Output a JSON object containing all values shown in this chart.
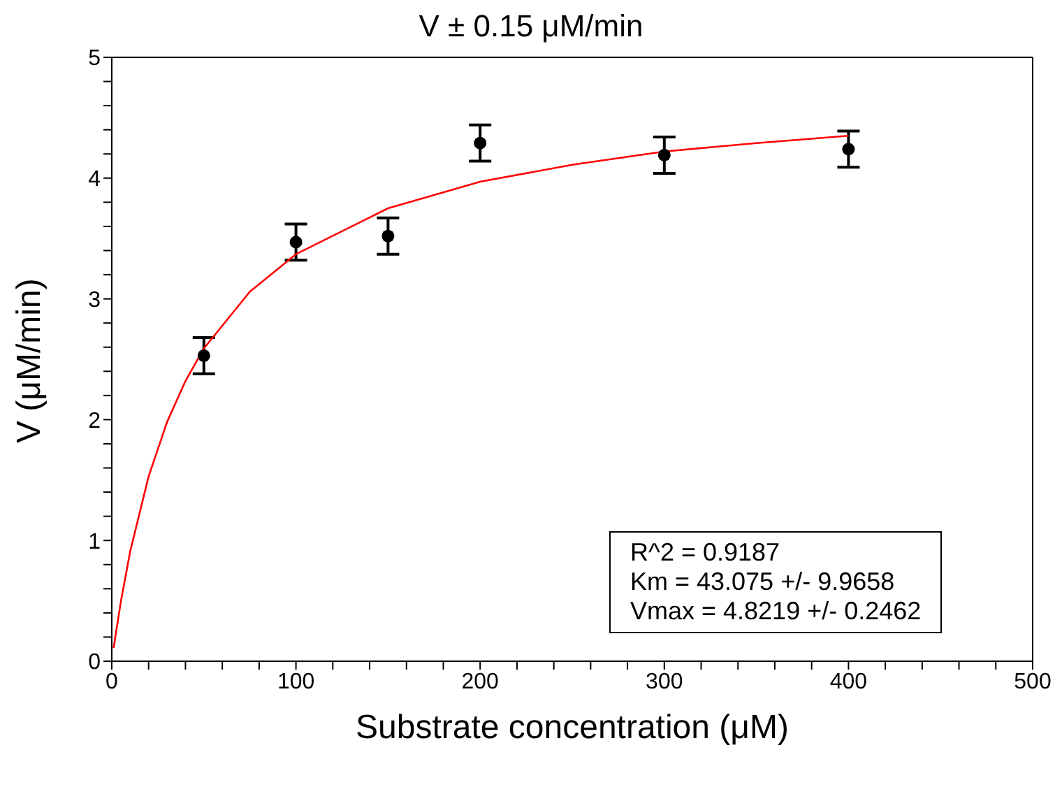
{
  "chart_data": {
    "type": "scatter",
    "title": "V ± 0.15 μM/min",
    "xlabel": "Substrate concentration (μM)",
    "ylabel": "V (μM/min)",
    "xlim": [
      0,
      500
    ],
    "xticks": [
      0,
      {
        "value": 20,
        "label": null
      },
      {
        "value": 40,
        "label": null
      },
      {
        "value": 60,
        "label": null
      },
      {
        "value": 80,
        "label": null
      },
      100,
      {
        "value": 120,
        "label": null
      },
      {
        "value": 140,
        "label": null
      },
      {
        "value": 160,
        "label": null
      },
      {
        "value": 180,
        "label": null
      },
      200,
      {
        "value": 220,
        "label": null
      },
      {
        "value": 240,
        "label": null
      },
      {
        "value": 260,
        "label": null
      },
      {
        "value": 280,
        "label": null
      },
      300,
      {
        "value": 320,
        "label": null
      },
      {
        "value": 340,
        "label": null
      },
      {
        "value": 360,
        "label": null
      },
      {
        "value": 380,
        "label": null
      },
      400,
      {
        "value": 420,
        "label": null
      },
      {
        "value": 440,
        "label": null
      },
      {
        "value": 460,
        "label": null
      },
      {
        "value": 480,
        "label": null
      },
      500
    ],
    "ylim": [
      0,
      5
    ],
    "yticks": [
      0,
      {
        "value": 0.2,
        "label": null
      },
      {
        "value": 0.4,
        "label": null
      },
      {
        "value": 0.6,
        "label": null
      },
      {
        "value": 0.8,
        "label": null
      },
      1,
      {
        "value": 1.2,
        "label": null
      },
      {
        "value": 1.4,
        "label": null
      },
      {
        "value": 1.6,
        "label": null
      },
      {
        "value": 1.8,
        "label": null
      },
      2,
      {
        "value": 2.2,
        "label": null
      },
      {
        "value": 2.4,
        "label": null
      },
      {
        "value": 2.6,
        "label": null
      },
      {
        "value": 2.8,
        "label": null
      },
      3,
      {
        "value": 3.2,
        "label": null
      },
      {
        "value": 3.4,
        "label": null
      },
      {
        "value": 3.6,
        "label": null
      },
      {
        "value": 3.8,
        "label": null
      },
      4,
      {
        "value": 4.2,
        "label": null
      },
      {
        "value": 4.4,
        "label": null
      },
      {
        "value": 4.6,
        "label": null
      },
      {
        "value": 4.8,
        "label": null
      },
      5
    ],
    "grid": false,
    "legend": false,
    "series": [
      {
        "color": "#000000",
        "marker": "circle",
        "x": [
          50,
          100,
          150,
          200,
          300,
          400
        ],
        "values": [
          2.53,
          3.47,
          3.52,
          4.29,
          4.19,
          4.24
        ],
        "errors": [
          0.15,
          0.15,
          0.15,
          0.15,
          0.15,
          0.15
        ]
      },
      {
        "type": "line",
        "color": "#ff0000",
        "marker": "none",
        "line_style": "solid",
        "x": [
          1,
          5,
          10,
          20,
          30,
          40,
          50,
          75,
          100,
          150,
          200,
          250,
          300,
          350,
          400
        ],
        "values": [
          0.11,
          0.5,
          0.91,
          1.53,
          1.98,
          2.32,
          2.59,
          3.06,
          3.37,
          3.75,
          3.97,
          4.11,
          4.22,
          4.29,
          4.35
        ]
      }
    ],
    "annotations": [
      "R^2 = 0.9187",
      "Km = 43.075 +/- 9.9658",
      "Vmax = 4.8219 +/- 0.2462"
    ]
  }
}
